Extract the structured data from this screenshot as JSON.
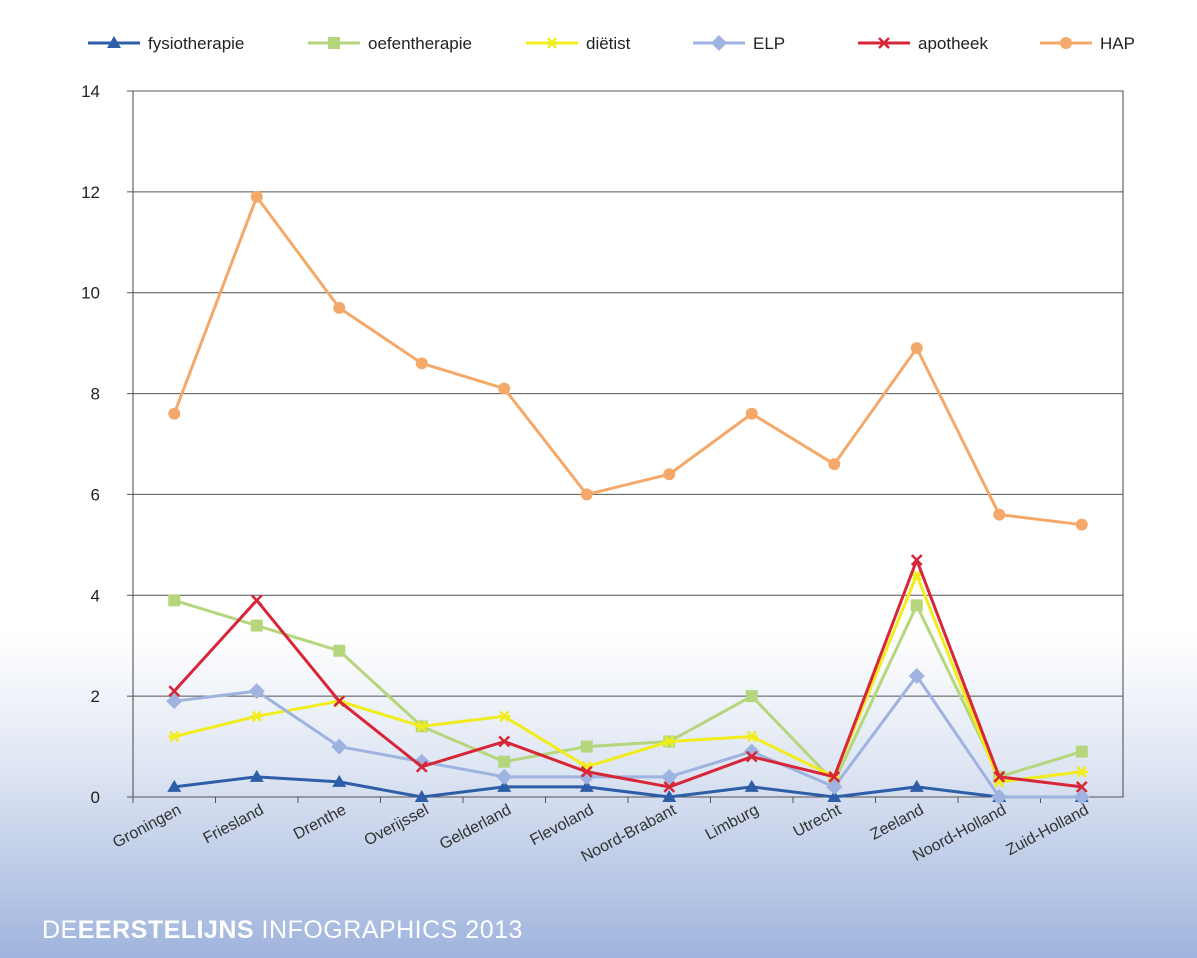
{
  "chart_data": {
    "type": "line",
    "title": "",
    "xlabel": "",
    "ylabel": "",
    "ylim": [
      0,
      14
    ],
    "yticks": [
      0,
      2,
      4,
      6,
      8,
      10,
      12,
      14
    ],
    "grid": true,
    "legend_position": "top",
    "categories": [
      "Groningen",
      "Friesland",
      "Drenthe",
      "Overijssel",
      "Gelderland",
      "Flevoland",
      "Noord-Brabant",
      "Limburg",
      "Utrecht",
      "Zeeland",
      "Noord-Holland",
      "Zuid-Holland"
    ],
    "series": [
      {
        "name": "fysiotherapie",
        "color": "#2f5ea8",
        "marker": "triangle",
        "values": [
          0.2,
          0.4,
          0.3,
          0.0,
          0.2,
          0.2,
          0.0,
          0.2,
          0.0,
          0.2,
          0.0,
          0.0
        ]
      },
      {
        "name": "oefentherapie",
        "color": "#b5d67c",
        "marker": "square",
        "values": [
          3.9,
          3.4,
          2.9,
          1.4,
          0.7,
          1.0,
          1.1,
          2.0,
          0.3,
          3.8,
          0.4,
          0.9
        ]
      },
      {
        "name": "diëtist",
        "color": "#f2ec1b",
        "marker": "star",
        "values": [
          1.2,
          1.6,
          1.9,
          1.4,
          1.6,
          0.6,
          1.1,
          1.2,
          0.4,
          4.4,
          0.3,
          0.5
        ]
      },
      {
        "name": "ELP",
        "color": "#9eb3df",
        "marker": "diamond",
        "values": [
          1.9,
          2.1,
          1.0,
          0.7,
          0.4,
          0.4,
          0.4,
          0.9,
          0.2,
          2.4,
          0.0,
          0.0
        ]
      },
      {
        "name": "apotheek",
        "color": "#d72638",
        "marker": "x",
        "values": [
          2.1,
          3.9,
          1.9,
          0.6,
          1.1,
          0.5,
          0.2,
          0.8,
          0.4,
          4.7,
          0.4,
          0.2
        ]
      },
      {
        "name": "HAP",
        "color": "#f4a96a",
        "marker": "circle",
        "values": [
          7.6,
          11.9,
          9.7,
          8.6,
          8.1,
          6.0,
          6.4,
          7.6,
          6.6,
          8.9,
          5.6,
          5.4
        ]
      }
    ]
  },
  "footer": {
    "prefix": "DE",
    "brand": "EERSTELIJNS",
    "suffix": " INFOGRAPHICS 2013"
  }
}
